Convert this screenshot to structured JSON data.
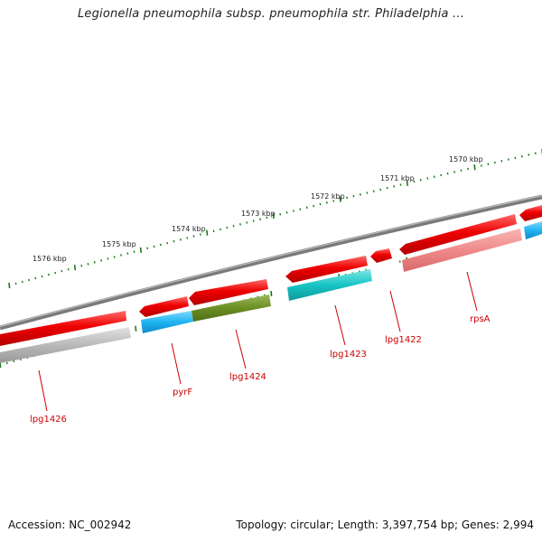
{
  "title": "Legionella pneumophila subsp. pneumophila str. Philadelphia ...",
  "footer": {
    "accession": "Accession: NC_002942",
    "summary": "Topology: circular; Length: 3,397,754 bp; Genes: 2,994"
  },
  "scale_labels": [
    "1576 kbp",
    "1575 kbp",
    "1574 kbp",
    "1573 kbp",
    "1572 kbp",
    "1571 kbp",
    "1570 kbp"
  ],
  "gene_labels": [
    "lpg1426",
    "pyrF",
    "lpg1424",
    "lpg1423",
    "lpg1422",
    "rpsA"
  ],
  "colors": {
    "backbone": "#7a7a7a",
    "cds_red": "#ee0000",
    "cds_red_light": "#f08a8a",
    "blue": "#1fb4f2",
    "olive": "#6b8e23",
    "cyan": "#18c4c4",
    "gray": "#b9b9b9",
    "tick": "#1a7a1a",
    "label": "#cc0000"
  }
}
